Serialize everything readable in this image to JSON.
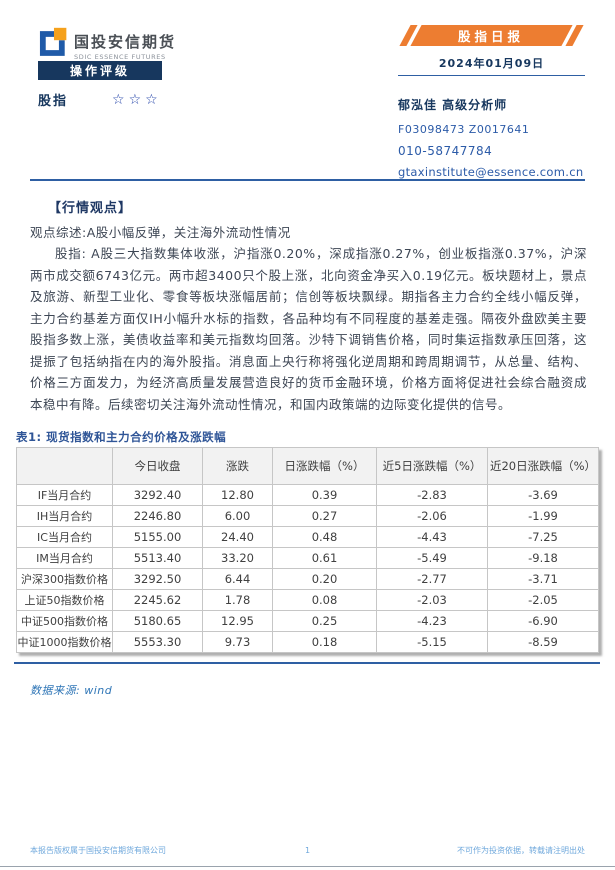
{
  "header": {
    "logo_cn": "国投安信期货",
    "logo_en": "SDIC ESSENCE FUTURES",
    "rating_box_label": "操作评级",
    "instrument": "股指",
    "rating_stars": "☆☆☆",
    "report_banner": "股指日报",
    "report_date": "2024年01月09日",
    "analyst": {
      "name_title": "郁泓佳 高级分析师",
      "license": "F03098473 Z0017641",
      "phone": "010-58747784",
      "email": "gtaxinstitute@essence.com.cn"
    }
  },
  "main": {
    "section_title": "【行情观点】",
    "summary": "观点综述:A股小幅反弹，关注海外流动性情况",
    "paragraph": "股指: A股三大指数集体收涨，沪指涨0.20%，深成指涨0.27%，创业板指涨0.37%，沪深两市成交额6743亿元。两市超3400只个股上涨，北向资金净买入0.19亿元。板块题材上，景点及旅游、新型工业化、零食等板块涨幅居前；信创等板块飘绿。期指各主力合约全线小幅反弹，主力合约基差方面仅IH小幅升水标的指数，各品种均有不同程度的基差走强。隔夜外盘欧美主要股指多数上涨，美债收益率和美元指数均回落。沙特下调销售价格，同时集运指数承压回落，这提振了包括纳指在内的海外股指。消息面上央行称将强化逆周期和跨周期调节，从总量、结构、价格三方面发力，为经济高质量发展营造良好的货币金融环境，价格方面将促进社会综合融资成本稳中有降。后续密切关注海外流动性情况，和国内政策端的边际变化提供的信号。"
  },
  "table": {
    "title": "表1: 现货指数和主力合约价格及涨跌幅",
    "headers": [
      "",
      "今日收盘",
      "涨跌",
      "日涨跌幅（%）",
      "近5日涨跌幅（%）",
      "近20日涨跌幅（%）"
    ],
    "rows": [
      {
        "label": "IF当月合约",
        "values": [
          "3292.40",
          "12.80",
          "0.39",
          "-2.83",
          "-3.69"
        ]
      },
      {
        "label": "IH当月合约",
        "values": [
          "2246.80",
          "6.00",
          "0.27",
          "-2.06",
          "-1.99"
        ]
      },
      {
        "label": "IC当月合约",
        "values": [
          "5155.00",
          "24.40",
          "0.48",
          "-4.43",
          "-7.25"
        ]
      },
      {
        "label": "IM当月合约",
        "values": [
          "5513.40",
          "33.20",
          "0.61",
          "-5.49",
          "-9.18"
        ]
      },
      {
        "label": "沪深300指数价格",
        "values": [
          "3292.50",
          "6.44",
          "0.20",
          "-2.77",
          "-3.71"
        ]
      },
      {
        "label": "上证50指数价格",
        "values": [
          "2245.62",
          "1.78",
          "0.08",
          "-2.03",
          "-2.05"
        ]
      },
      {
        "label": "中证500指数价格",
        "values": [
          "5180.65",
          "12.95",
          "0.25",
          "-4.23",
          "-6.90"
        ]
      },
      {
        "label": "中证1000指数价格",
        "values": [
          "5553.30",
          "9.73",
          "0.18",
          "-5.15",
          "-8.59"
        ]
      }
    ],
    "source": "数据来源: wind"
  },
  "footer": {
    "left": "本报告版权属于国投安信期货有限公司",
    "page_number": "1",
    "right": "不可作为投资依据，转载请注明出处"
  },
  "colors": {
    "brand_navy": "#17375E",
    "brand_orange": "#ED7D31",
    "link_blue": "#2C5BA8",
    "rule_blue": "#2E5FA3",
    "table_title_blue": "#2F5597",
    "source_blue": "#2E75B6",
    "footer_blue": "#6FA8DC"
  }
}
